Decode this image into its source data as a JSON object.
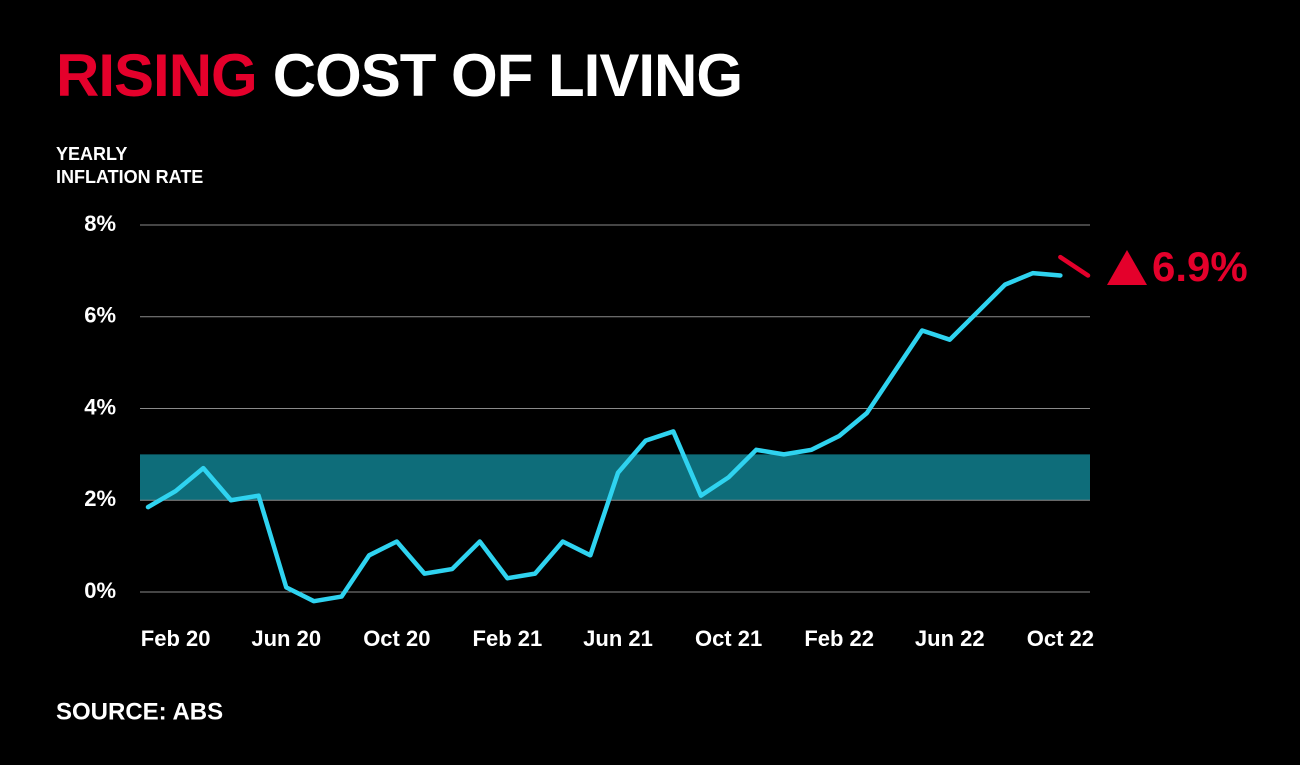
{
  "chart_data": {
    "type": "line",
    "title_highlight": "RISING",
    "title": "COST OF LIVING",
    "ylabel": [
      "YEARLY",
      "INFLATION RATE"
    ],
    "source": "SOURCE: ABS",
    "annotation": "6.9%",
    "categories": [
      null,
      "Feb 20",
      null,
      null,
      null,
      "Jun 20",
      null,
      null,
      null,
      "Oct 20",
      null,
      null,
      null,
      "Feb 21",
      null,
      null,
      null,
      "Jun 21",
      null,
      null,
      null,
      "Oct 21",
      null,
      null,
      null,
      "Feb 22",
      null,
      null,
      null,
      "Jun 22",
      null,
      null,
      null,
      "Oct 22",
      null
    ],
    "series": [
      {
        "color": "#2fd3f0",
        "values": [
          1.85,
          2.2,
          2.7,
          2.0,
          2.1,
          0.1,
          -0.2,
          -0.1,
          0.8,
          1.1,
          0.4,
          0.5,
          1.1,
          0.3,
          0.4,
          1.1,
          0.8,
          2.6,
          3.3,
          3.5,
          2.1,
          2.5,
          3.1,
          3.0,
          3.1,
          3.4,
          3.9,
          4.8,
          5.7,
          5.5,
          6.1,
          6.7,
          6.95,
          6.9,
          null
        ]
      },
      {
        "color": "#e4002b",
        "values": [
          null,
          null,
          null,
          null,
          null,
          null,
          null,
          null,
          null,
          null,
          null,
          null,
          null,
          null,
          null,
          null,
          null,
          null,
          null,
          null,
          null,
          null,
          null,
          null,
          null,
          null,
          null,
          null,
          null,
          null,
          null,
          null,
          null,
          7.3,
          6.9
        ]
      }
    ],
    "band": [
      2,
      3
    ],
    "band_color": "#0e6d7a",
    "ylim": [
      0,
      8
    ],
    "yticks": [
      {
        "value": 0,
        "label": "0%"
      },
      {
        "value": 2,
        "label": "2%"
      },
      {
        "value": 4,
        "label": "4%"
      },
      {
        "value": 6,
        "label": "6%"
      },
      {
        "value": 8,
        "label": "8%"
      }
    ],
    "grid": true
  }
}
